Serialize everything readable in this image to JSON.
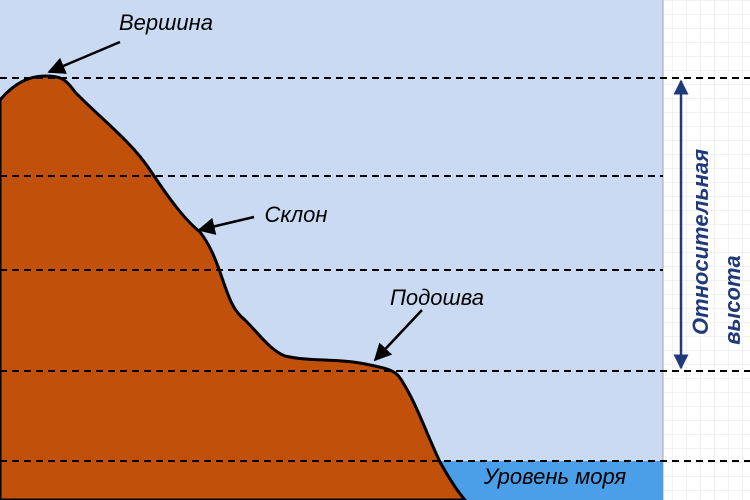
{
  "labels": {
    "peak": "Вершина",
    "slope": "Склон",
    "foot": "Подошва",
    "sea_level": "Уровень моря",
    "relative_height": [
      "Относительная",
      "высота"
    ]
  }
}
